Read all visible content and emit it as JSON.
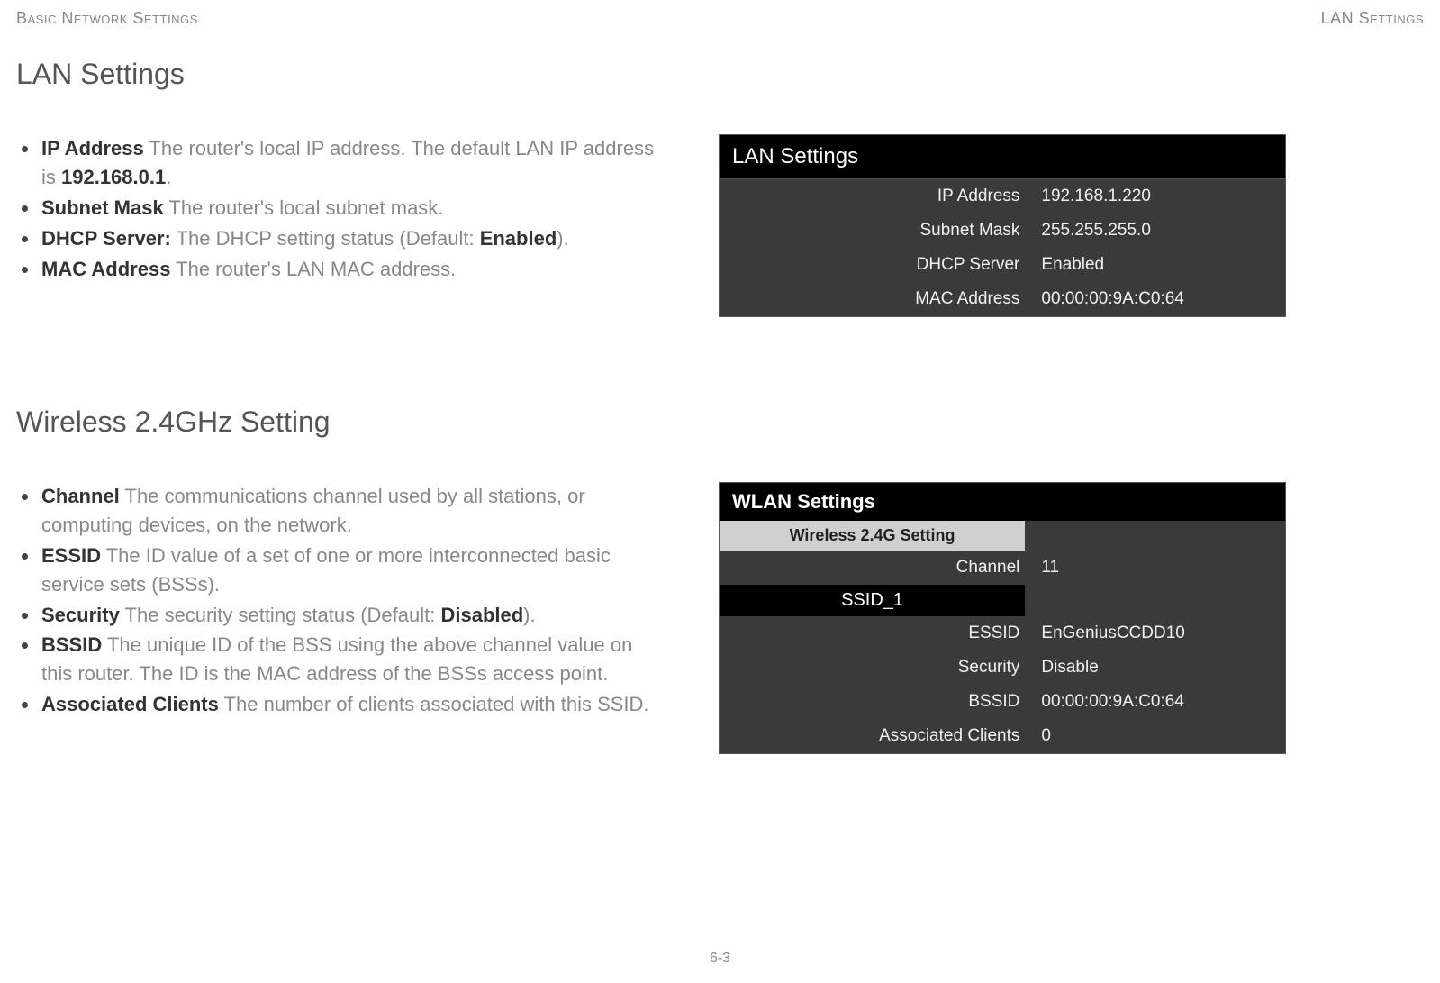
{
  "header": {
    "left": "Basic Network Settings",
    "right": "LAN Settings"
  },
  "page_number": "6-3",
  "lan_section": {
    "title": "LAN Settings",
    "items": [
      {
        "term": "IP Address",
        "desc_pre": "  The router's local IP address. The default LAN IP address is ",
        "strong": "192.168.0.1",
        "desc_post": "."
      },
      {
        "term": "Subnet Mask",
        "desc_pre": "  The router's local subnet mask.",
        "strong": "",
        "desc_post": ""
      },
      {
        "term": "DHCP Server:",
        "desc_pre": " The DHCP setting status (Default: ",
        "strong": "Enabled",
        "desc_post": ")."
      },
      {
        "term": "MAC Address",
        "desc_pre": "  The router's LAN MAC address.",
        "strong": "",
        "desc_post": ""
      }
    ],
    "panel_title": "LAN Settings",
    "rows": [
      {
        "key": "IP Address",
        "val": "192.168.1.220"
      },
      {
        "key": "Subnet Mask",
        "val": "255.255.255.0"
      },
      {
        "key": "DHCP Server",
        "val": "Enabled"
      },
      {
        "key": "MAC Address",
        "val": "00:00:00:9A:C0:64"
      }
    ]
  },
  "wlan_section": {
    "title": "Wireless 2.4GHz Setting",
    "items": [
      {
        "term": "Channel",
        "desc_pre": "  The communications channel used by all stations, or computing devices, on the network.",
        "strong": "",
        "desc_post": ""
      },
      {
        "term": "ESSID",
        "desc_pre": "  The ID value of a set of one or more interconnected basic service sets (BSSs).",
        "strong": "",
        "desc_post": ""
      },
      {
        "term": "Security",
        "desc_pre": "  The security setting status (Default: ",
        "strong": "Disabled",
        "desc_post": ")."
      },
      {
        "term": "BSSID",
        "desc_pre": "  The unique ID of the BSS using the above channel value on this router. The ID is the MAC address of the BSSs access point.",
        "strong": "",
        "desc_post": ""
      },
      {
        "term": "Associated Clients",
        "desc_pre": "  The number of clients associated with this SSID.",
        "strong": "",
        "desc_post": ""
      }
    ],
    "panel_title": "WLAN Settings",
    "subheader": "Wireless 2.4G Setting",
    "channel_row": {
      "key": "Channel",
      "val": "11"
    },
    "ssid_label": "SSID_1",
    "rows": [
      {
        "key": "ESSID",
        "val": "EnGeniusCCDD10"
      },
      {
        "key": "Security",
        "val": "Disable"
      },
      {
        "key": "BSSID",
        "val": "00:00:00:9A:C0:64"
      },
      {
        "key": "Associated Clients",
        "val": "0"
      }
    ]
  },
  "colors": {
    "page_bg": "#ffffff",
    "muted_text": "#888888",
    "body_text": "#333333",
    "panel_bg": "#3a3a3a",
    "panel_header_bg": "#000000",
    "subheader_bg": "#d0d0d0",
    "panel_text": "#f0f0f0"
  }
}
